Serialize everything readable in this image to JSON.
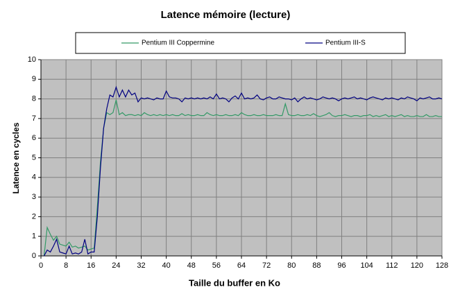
{
  "chart_data": {
    "type": "line",
    "title": "Latence mémoire (lecture)",
    "x_label": "Taille du buffer en Ko",
    "y_label": "Latence en cycles",
    "x": [
      1,
      2,
      3,
      4,
      5,
      6,
      7,
      8,
      9,
      10,
      11,
      12,
      13,
      14,
      15,
      16,
      17,
      18,
      19,
      20,
      21,
      22,
      23,
      24,
      25,
      26,
      27,
      28,
      29,
      30,
      31,
      32,
      33,
      34,
      35,
      36,
      37,
      38,
      39,
      40,
      41,
      42,
      43,
      44,
      45,
      46,
      47,
      48,
      49,
      50,
      51,
      52,
      53,
      54,
      55,
      56,
      57,
      58,
      59,
      60,
      61,
      62,
      63,
      64,
      65,
      66,
      67,
      68,
      69,
      70,
      71,
      72,
      73,
      74,
      75,
      76,
      77,
      78,
      79,
      80,
      81,
      82,
      83,
      84,
      85,
      86,
      87,
      88,
      89,
      90,
      91,
      92,
      93,
      94,
      95,
      96,
      97,
      98,
      99,
      100,
      101,
      102,
      103,
      104,
      105,
      106,
      107,
      108,
      109,
      110,
      111,
      112,
      113,
      114,
      115,
      116,
      117,
      118,
      119,
      120,
      121,
      122,
      123,
      124,
      125,
      126,
      127,
      128
    ],
    "series": [
      {
        "name": "Pentium III Coppermine",
        "color": "#339966",
        "values": [
          0,
          1.45,
          1.1,
          0.8,
          1.0,
          0.6,
          0.55,
          0.5,
          0.7,
          0.45,
          0.5,
          0.4,
          0.45,
          0.5,
          0.3,
          0.35,
          0.4,
          2.5,
          4.8,
          6.5,
          7.3,
          7.2,
          7.3,
          7.95,
          7.2,
          7.3,
          7.15,
          7.2,
          7.2,
          7.15,
          7.2,
          7.15,
          7.3,
          7.2,
          7.15,
          7.2,
          7.15,
          7.2,
          7.15,
          7.2,
          7.15,
          7.2,
          7.15,
          7.15,
          7.25,
          7.15,
          7.2,
          7.15,
          7.15,
          7.2,
          7.15,
          7.15,
          7.3,
          7.2,
          7.15,
          7.2,
          7.15,
          7.15,
          7.2,
          7.15,
          7.15,
          7.2,
          7.15,
          7.3,
          7.2,
          7.15,
          7.15,
          7.2,
          7.15,
          7.15,
          7.2,
          7.15,
          7.15,
          7.15,
          7.2,
          7.15,
          7.15,
          7.75,
          7.2,
          7.15,
          7.15,
          7.2,
          7.15,
          7.15,
          7.2,
          7.15,
          7.25,
          7.15,
          7.1,
          7.15,
          7.2,
          7.3,
          7.15,
          7.1,
          7.15,
          7.15,
          7.2,
          7.15,
          7.1,
          7.15,
          7.15,
          7.1,
          7.15,
          7.15,
          7.2,
          7.1,
          7.15,
          7.1,
          7.15,
          7.2,
          7.1,
          7.15,
          7.1,
          7.15,
          7.2,
          7.1,
          7.15,
          7.1,
          7.1,
          7.15,
          7.1,
          7.1,
          7.2,
          7.1,
          7.1,
          7.15,
          7.1,
          7.1
        ]
      },
      {
        "name": "Pentium III-S",
        "color": "#000080",
        "values": [
          0,
          0.3,
          0.2,
          0.5,
          0.85,
          0.2,
          0.15,
          0.1,
          0.5,
          0.1,
          0.15,
          0.1,
          0.2,
          0.85,
          0.1,
          0.2,
          0.2,
          2.0,
          4.5,
          6.5,
          7.5,
          8.2,
          8.1,
          8.6,
          8.1,
          8.45,
          8.1,
          8.45,
          8.2,
          8.3,
          7.85,
          8.05,
          8.0,
          8.05,
          8.0,
          7.95,
          8.05,
          8.0,
          8.0,
          8.4,
          8.1,
          8.05,
          8.05,
          8.0,
          7.85,
          8.05,
          8.0,
          8.05,
          8.0,
          8.05,
          8.0,
          8.05,
          8.0,
          8.1,
          8.0,
          8.25,
          8.0,
          8.05,
          8.0,
          7.85,
          8.05,
          8.15,
          8.0,
          8.3,
          8.0,
          8.05,
          8.0,
          8.05,
          8.2,
          8.0,
          7.95,
          8.05,
          8.1,
          8.0,
          8.0,
          8.1,
          8.05,
          8.0,
          8.0,
          7.95,
          8.05,
          7.85,
          8.0,
          8.1,
          8.0,
          8.05,
          8.0,
          7.95,
          8.0,
          8.1,
          8.05,
          8.0,
          8.05,
          8.0,
          7.9,
          8.0,
          8.05,
          8.0,
          8.05,
          8.1,
          8.0,
          8.05,
          8.0,
          7.95,
          8.05,
          8.1,
          8.05,
          8.0,
          7.95,
          8.05,
          8.0,
          8.05,
          8.0,
          7.95,
          8.05,
          8.0,
          8.1,
          8.05,
          8.0,
          7.9,
          8.05,
          8.0,
          8.05,
          8.1,
          8.0,
          8.0,
          8.05,
          8.0
        ]
      }
    ],
    "xlim": [
      0,
      128
    ],
    "xticks": [
      0,
      8,
      16,
      24,
      32,
      40,
      48,
      56,
      64,
      72,
      80,
      88,
      96,
      104,
      112,
      120,
      128
    ],
    "ylim": [
      0,
      10
    ],
    "yticks": [
      0,
      1,
      2,
      3,
      4,
      5,
      6,
      7,
      8,
      9,
      10
    ],
    "grid": true,
    "legend": "top"
  }
}
